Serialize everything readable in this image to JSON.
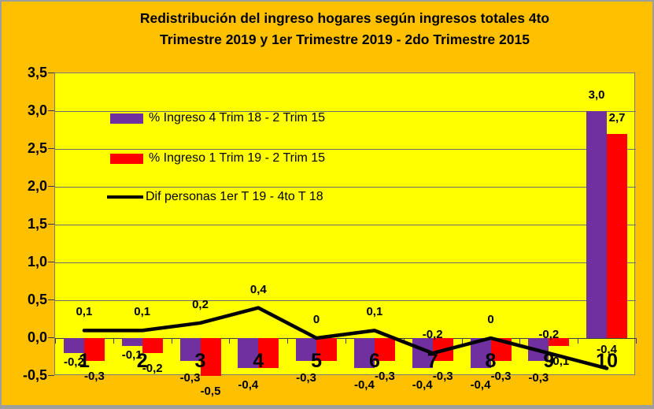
{
  "title": {
    "line1": "Redistribución del ingreso hogares según ingresos totales 4to",
    "line2": "Trimestre 2019 y 1er Trimestre 2019 - 2do Trimestre 2015"
  },
  "colors": {
    "background": "#FFC000",
    "plot_background": "#FFFF00",
    "gridline": "#6E6E6E",
    "purple": "#7030A0",
    "red": "#FF0000",
    "line": "#000000",
    "frame_border": "#9E9E9E"
  },
  "y_axis": {
    "tick_labels": [
      "3,5",
      "3,0",
      "2,5",
      "2,0",
      "1,5",
      "1,0",
      "0,5",
      "0,0",
      "-0,5"
    ],
    "min": -0.5,
    "max": 3.5,
    "step": 0.5
  },
  "chart_data": {
    "type": "bar",
    "title": "Redistribución del ingreso hogares según ingresos totales 4to Trimestre 2019 y 1er Trimestre 2019 - 2do Trimestre 2015",
    "categories": [
      "1",
      "2",
      "3",
      "4",
      "5",
      "6",
      "7",
      "8",
      "9",
      "10"
    ],
    "ylim": [
      -0.5,
      3.5
    ],
    "grid": true,
    "legend_position": "top-left-inside",
    "series": [
      {
        "name": "% Ingreso 4 Trim 18 - 2 Trim 15",
        "type": "bar",
        "color": "#7030A0",
        "values": [
          -0.2,
          -0.1,
          -0.3,
          -0.4,
          -0.3,
          -0.4,
          -0.4,
          -0.4,
          -0.3,
          3.0
        ],
        "labels": [
          "-0,2",
          "-0,1",
          "-0,3",
          "-0,4",
          "-0,3",
          "-0,4",
          "-0,4",
          "-0,4",
          "-0,3",
          "3,0"
        ]
      },
      {
        "name": "% Ingreso 1 Trim 19 - 2 Trim 15",
        "type": "bar",
        "color": "#FF0000",
        "values": [
          -0.3,
          -0.2,
          -0.5,
          -0.4,
          -0.3,
          -0.3,
          -0.3,
          -0.3,
          -0.1,
          2.7
        ],
        "labels": [
          "-0,3",
          "-0,2",
          "-0,5",
          "",
          "",
          "-0,3",
          "-0,3",
          "-0,3",
          "-0,1",
          "2,7"
        ]
      },
      {
        "name": "Dif personas 1er T 19 - 4to T 18",
        "type": "line",
        "color": "#000000",
        "values": [
          0.1,
          0.1,
          0.2,
          0.4,
          0,
          0.1,
          -0.2,
          0,
          -0.2,
          -0.4
        ],
        "labels": [
          "0,1",
          "0,1",
          "0,2",
          "0,4",
          "0",
          "0,1",
          "-0,2",
          "0",
          "-0,2",
          "-0,4"
        ]
      }
    ]
  }
}
